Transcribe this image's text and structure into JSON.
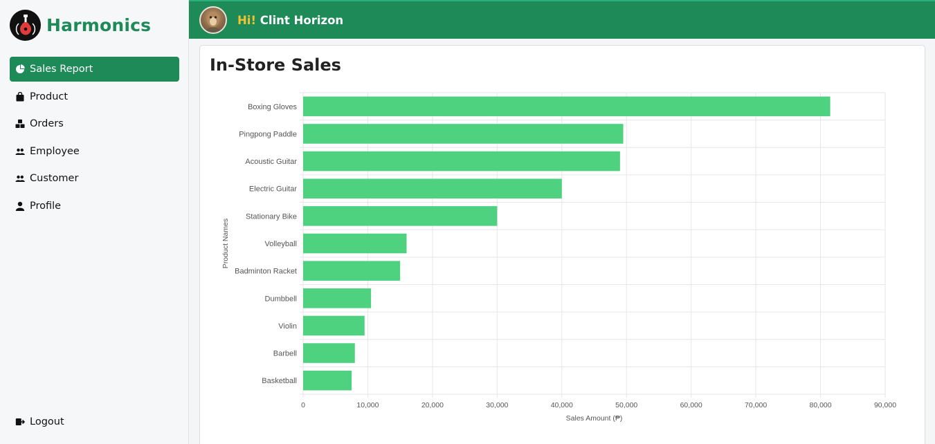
{
  "app": {
    "name": "Harmonics"
  },
  "sidebar": {
    "items": [
      {
        "label": "Sales Report",
        "icon": "pie-chart-icon",
        "active": true
      },
      {
        "label": "Product",
        "icon": "shopping-bag-icon",
        "active": false
      },
      {
        "label": "Orders",
        "icon": "boxes-icon",
        "active": false
      },
      {
        "label": "Employee",
        "icon": "people-icon",
        "active": false
      },
      {
        "label": "Customer",
        "icon": "people-icon",
        "active": false
      },
      {
        "label": "Profile",
        "icon": "person-icon",
        "active": false
      }
    ],
    "logout_label": "Logout"
  },
  "header": {
    "greeting": "Hi!",
    "user_name": "Clint Horizon"
  },
  "main": {
    "title": "In-Store Sales"
  },
  "colors": {
    "brand": "#1d8a58",
    "bar": "#4fd27f",
    "accent": "#f2c233"
  },
  "chart_data": {
    "type": "bar",
    "orientation": "horizontal",
    "categories": [
      "Boxing Gloves",
      "Pingpong Paddle",
      "Acoustic Guitar",
      "Electric Guitar",
      "Stationary Bike",
      "Volleyball",
      "Badminton Racket",
      "Dumbbell",
      "Violin",
      "Barbell",
      "Basketball"
    ],
    "values": [
      81500,
      49500,
      49000,
      40000,
      30000,
      16000,
      15000,
      10500,
      9500,
      8000,
      7500
    ],
    "xlabel": "Sales Amount (₱)",
    "ylabel": "Product Names",
    "xlim": [
      0,
      90000
    ],
    "xticks": [
      "0",
      "10,000",
      "20,000",
      "30,000",
      "40,000",
      "50,000",
      "60,000",
      "70,000",
      "80,000",
      "90,000"
    ],
    "grid": true
  }
}
